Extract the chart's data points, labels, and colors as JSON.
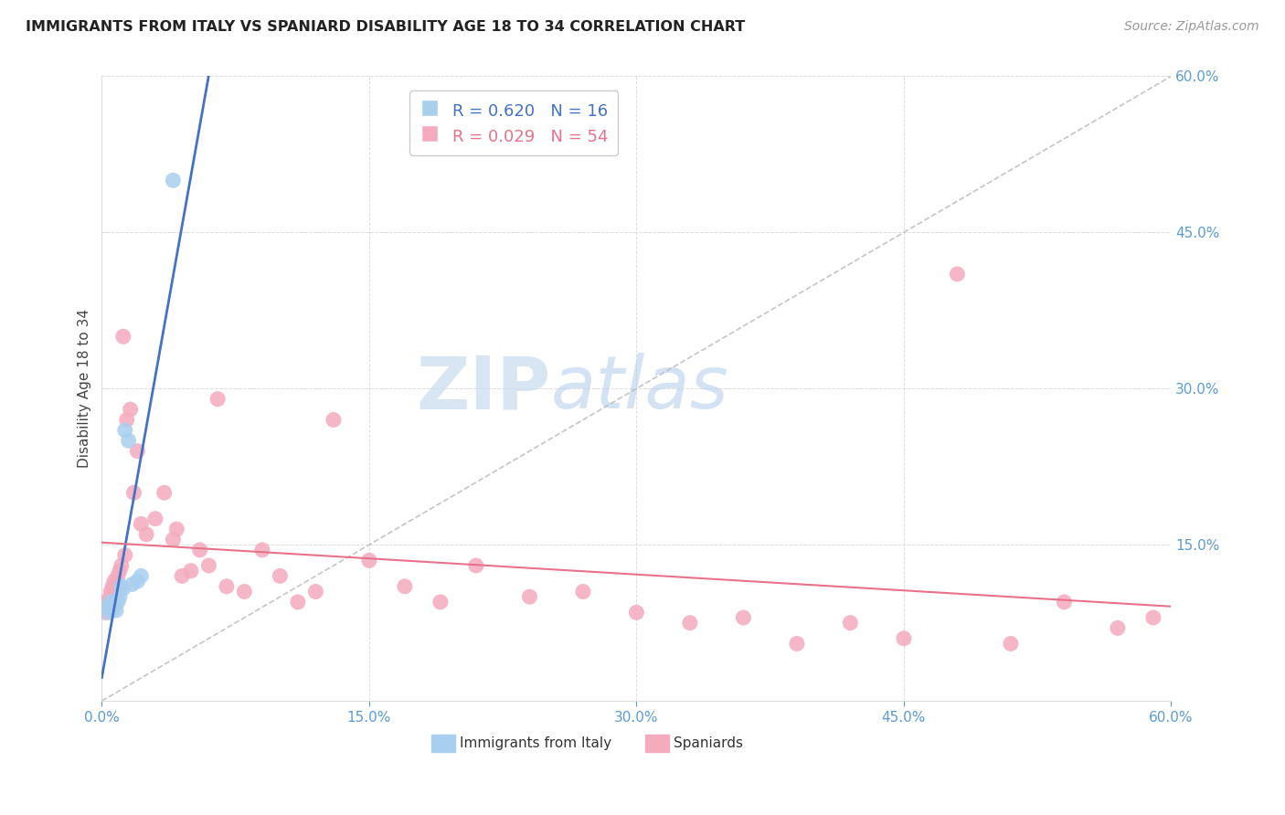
{
  "title": "IMMIGRANTS FROM ITALY VS SPANIARD DISABILITY AGE 18 TO 34 CORRELATION CHART",
  "source": "Source: ZipAtlas.com",
  "ylabel": "Disability Age 18 to 34",
  "xlim": [
    0.0,
    0.6
  ],
  "ylim": [
    0.0,
    0.6
  ],
  "xticks": [
    0.0,
    0.15,
    0.3,
    0.45,
    0.6
  ],
  "yticks": [
    0.15,
    0.3,
    0.45,
    0.6
  ],
  "ytick_labels": [
    "15.0%",
    "30.0%",
    "45.0%",
    "60.0%"
  ],
  "xtick_labels": [
    "0.0%",
    "15.0%",
    "30.0%",
    "45.0%",
    "60.0%"
  ],
  "italy_color": "#A8CFEE",
  "spain_color": "#F4ABBE",
  "italy_R": 0.62,
  "italy_N": 16,
  "spain_R": 0.029,
  "spain_N": 54,
  "italy_line_color": "#4472C4",
  "spain_line_color": "#E8728A",
  "diagonal_color": "#BBBBBB",
  "watermark_zip": "ZIP",
  "watermark_atlas": "atlas",
  "italy_x": [
    0.003,
    0.004,
    0.005,
    0.006,
    0.007,
    0.008,
    0.009,
    0.01,
    0.011,
    0.012,
    0.013,
    0.015,
    0.017,
    0.02,
    0.022,
    0.04
  ],
  "italy_y": [
    0.09,
    0.085,
    0.095,
    0.088,
    0.092,
    0.087,
    0.095,
    0.1,
    0.11,
    0.108,
    0.26,
    0.25,
    0.112,
    0.115,
    0.12,
    0.5
  ],
  "spain_x": [
    0.001,
    0.002,
    0.002,
    0.003,
    0.004,
    0.005,
    0.005,
    0.006,
    0.007,
    0.008,
    0.009,
    0.01,
    0.011,
    0.012,
    0.013,
    0.014,
    0.016,
    0.018,
    0.02,
    0.022,
    0.025,
    0.03,
    0.035,
    0.04,
    0.042,
    0.045,
    0.05,
    0.055,
    0.06,
    0.065,
    0.07,
    0.08,
    0.09,
    0.1,
    0.11,
    0.12,
    0.13,
    0.15,
    0.17,
    0.19,
    0.21,
    0.24,
    0.27,
    0.3,
    0.33,
    0.36,
    0.39,
    0.42,
    0.45,
    0.48,
    0.51,
    0.54,
    0.57,
    0.59
  ],
  "spain_y": [
    0.095,
    0.085,
    0.09,
    0.09,
    0.095,
    0.1,
    0.105,
    0.11,
    0.115,
    0.11,
    0.12,
    0.125,
    0.13,
    0.35,
    0.14,
    0.27,
    0.28,
    0.2,
    0.24,
    0.17,
    0.16,
    0.175,
    0.2,
    0.155,
    0.165,
    0.12,
    0.125,
    0.145,
    0.13,
    0.29,
    0.11,
    0.105,
    0.145,
    0.12,
    0.095,
    0.105,
    0.27,
    0.135,
    0.11,
    0.095,
    0.13,
    0.1,
    0.105,
    0.085,
    0.075,
    0.08,
    0.055,
    0.075,
    0.06,
    0.41,
    0.055,
    0.095,
    0.07,
    0.08
  ],
  "legend_italy_label": "R = 0.620   N = 16",
  "legend_spain_label": "R = 0.029   N = 54",
  "bottom_legend_italy": "Immigrants from Italy",
  "bottom_legend_spain": "Spaniards"
}
